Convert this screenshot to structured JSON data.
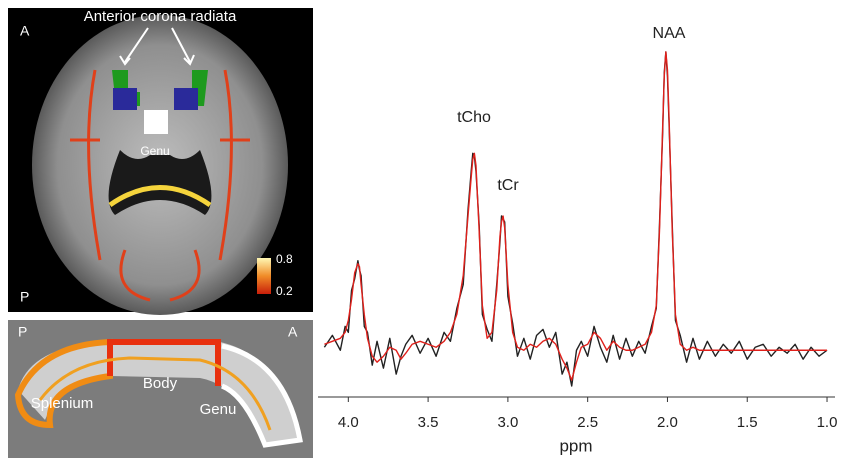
{
  "axial_image": {
    "annotation": "Anterior corona radiata",
    "anterior": "A",
    "posterior": "P",
    "genu": "Genu",
    "colorbar_max": 0.8,
    "colorbar_min": 0.2
  },
  "sagittal_image": {
    "posterior": "P",
    "anterior": "A",
    "splenium": "Splenium",
    "body": "Body",
    "genu": "Genu"
  },
  "chart_data": {
    "type": "line",
    "x_label": "ppm",
    "annotations": [
      "NAA",
      "tCho",
      "tCr"
    ],
    "xlim": [
      4.19,
      0.95
    ],
    "ylim": [
      -0.15,
      1.05
    ],
    "xticks": [
      {
        "value": 4,
        "label": "4.0"
      },
      3.5,
      {
        "value": 3,
        "label": "3.0"
      },
      2.5,
      {
        "value": 2,
        "label": "2.0"
      },
      1.5,
      {
        "value": 1,
        "label": "1.0"
      }
    ],
    "x": [
      4.15,
      4.1,
      4.05,
      4.02,
      4.0,
      3.98,
      3.96,
      3.94,
      3.93,
      3.92,
      3.9,
      3.88,
      3.85,
      3.82,
      3.78,
      3.74,
      3.7,
      3.67,
      3.64,
      3.6,
      3.55,
      3.5,
      3.45,
      3.4,
      3.36,
      3.32,
      3.28,
      3.25,
      3.23,
      3.22,
      3.21,
      3.2,
      3.18,
      3.16,
      3.13,
      3.1,
      3.07,
      3.05,
      3.04,
      3.03,
      3.02,
      3.0,
      2.97,
      2.94,
      2.9,
      2.86,
      2.82,
      2.78,
      2.74,
      2.7,
      2.66,
      2.63,
      2.6,
      2.57,
      2.54,
      2.5,
      2.46,
      2.42,
      2.38,
      2.34,
      2.3,
      2.26,
      2.22,
      2.18,
      2.14,
      2.1,
      2.07,
      2.05,
      2.03,
      2.02,
      2.01,
      2.0,
      1.99,
      1.97,
      1.95,
      1.92,
      1.88,
      1.84,
      1.8,
      1.75,
      1.7,
      1.65,
      1.6,
      1.55,
      1.5,
      1.45,
      1.4,
      1.35,
      1.3,
      1.25,
      1.2,
      1.15,
      1.1,
      1.05,
      1.0
    ],
    "series": [
      {
        "color": "#222222",
        "values": [
          0.01,
          0.05,
          0.0,
          0.08,
          0.06,
          0.2,
          0.24,
          0.3,
          0.27,
          0.25,
          0.08,
          0.06,
          -0.05,
          0.03,
          -0.06,
          0.04,
          -0.08,
          -0.02,
          0.02,
          0.05,
          -0.01,
          0.04,
          -0.02,
          0.06,
          0.03,
          0.14,
          0.22,
          0.47,
          0.6,
          0.66,
          0.65,
          0.6,
          0.42,
          0.12,
          0.07,
          0.03,
          0.22,
          0.36,
          0.45,
          0.44,
          0.43,
          0.18,
          0.09,
          -0.02,
          0.04,
          -0.03,
          0.05,
          0.07,
          0.01,
          0.06,
          -0.08,
          -0.04,
          -0.12,
          0.0,
          0.03,
          -0.02,
          0.08,
          0.01,
          -0.04,
          0.05,
          -0.03,
          0.04,
          -0.02,
          0.03,
          -0.01,
          0.08,
          0.14,
          0.42,
          0.73,
          0.93,
          1.0,
          0.92,
          0.76,
          0.42,
          0.1,
          0.05,
          -0.04,
          0.04,
          -0.03,
          0.03,
          -0.02,
          0.02,
          -0.01,
          0.03,
          -0.03,
          0.01,
          0.02,
          -0.02,
          0.01,
          -0.01,
          0.02,
          -0.03,
          0.01,
          -0.02,
          0.0
        ]
      },
      {
        "color": "#e0201b",
        "values": [
          0.02,
          0.03,
          0.04,
          0.06,
          0.1,
          0.17,
          0.26,
          0.29,
          0.28,
          0.22,
          0.12,
          0.04,
          -0.02,
          -0.04,
          -0.02,
          0.01,
          0.0,
          -0.03,
          -0.01,
          0.02,
          0.03,
          0.02,
          0.01,
          0.03,
          0.06,
          0.12,
          0.25,
          0.45,
          0.58,
          0.64,
          0.66,
          0.62,
          0.4,
          0.15,
          0.04,
          0.06,
          0.2,
          0.38,
          0.43,
          0.45,
          0.41,
          0.22,
          0.06,
          0.01,
          0.0,
          0.02,
          0.01,
          0.03,
          0.04,
          0.02,
          -0.03,
          -0.06,
          -0.1,
          -0.04,
          0.01,
          0.02,
          0.06,
          0.04,
          0.0,
          0.03,
          0.01,
          0.0,
          0.0,
          0.01,
          0.02,
          0.06,
          0.15,
          0.4,
          0.75,
          0.92,
          1.0,
          0.94,
          0.78,
          0.4,
          0.12,
          0.02,
          0.0,
          0.01,
          0.0,
          0.0,
          0.0,
          0.0,
          0.0,
          0.0,
          0.0,
          0.0,
          0.0,
          0.0,
          0.0,
          0,
          0,
          0,
          0,
          0,
          0
        ]
      }
    ]
  }
}
